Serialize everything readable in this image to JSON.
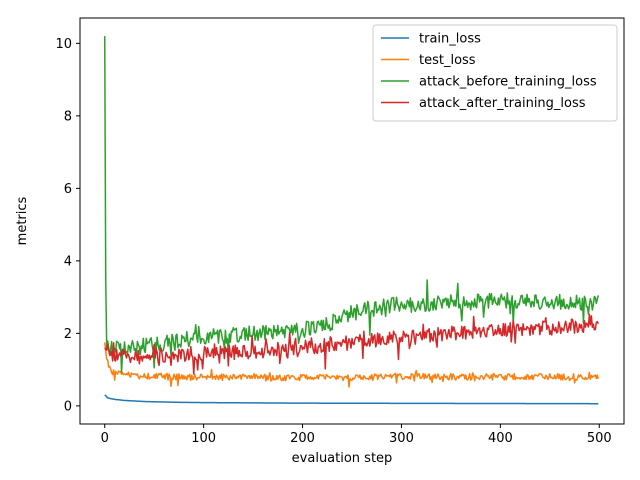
{
  "chart_data": {
    "type": "line",
    "title": "",
    "xlabel": "evaluation step",
    "ylabel": "metrics",
    "xlim": [
      -25,
      525
    ],
    "ylim": [
      -0.5,
      10.7
    ],
    "xticks": [
      0,
      100,
      200,
      300,
      400,
      500
    ],
    "yticks": [
      0,
      2,
      4,
      6,
      8,
      10
    ],
    "grid": false,
    "legend_position": "top-right",
    "x_range": [
      0,
      499
    ],
    "series": [
      {
        "name": "train_loss",
        "color": "#1f77b4",
        "noise": 0.0,
        "anchors": [
          [
            0,
            0.3
          ],
          [
            1,
            0.28
          ],
          [
            3,
            0.22
          ],
          [
            6,
            0.2
          ],
          [
            10,
            0.18
          ],
          [
            20,
            0.15
          ],
          [
            40,
            0.12
          ],
          [
            70,
            0.1
          ],
          [
            100,
            0.09
          ],
          [
            200,
            0.075
          ],
          [
            300,
            0.07
          ],
          [
            400,
            0.065
          ],
          [
            499,
            0.06
          ]
        ]
      },
      {
        "name": "test_loss",
        "color": "#ff7f0e",
        "noise": 0.09,
        "anchors": [
          [
            0,
            1.75
          ],
          [
            1,
            1.5
          ],
          [
            2,
            1.3
          ],
          [
            4,
            1.1
          ],
          [
            8,
            0.95
          ],
          [
            15,
            0.88
          ],
          [
            30,
            0.82
          ],
          [
            60,
            0.8
          ],
          [
            100,
            0.79
          ],
          [
            150,
            0.78
          ],
          [
            200,
            0.77
          ],
          [
            260,
            0.78
          ],
          [
            300,
            0.82
          ],
          [
            360,
            0.8
          ],
          [
            420,
            0.8
          ],
          [
            499,
            0.8
          ]
        ]
      },
      {
        "name": "attack_before_training_loss",
        "color": "#2ca02c",
        "noise": 0.22,
        "anchors": [
          [
            0,
            10.2
          ],
          [
            1,
            3.5
          ],
          [
            2,
            1.6
          ],
          [
            10,
            1.6
          ],
          [
            20,
            1.55
          ],
          [
            50,
            1.7
          ],
          [
            100,
            1.9
          ],
          [
            150,
            2.0
          ],
          [
            200,
            2.1
          ],
          [
            230,
            2.3
          ],
          [
            260,
            2.65
          ],
          [
            300,
            2.8
          ],
          [
            350,
            2.85
          ],
          [
            400,
            2.9
          ],
          [
            450,
            2.85
          ],
          [
            499,
            2.85
          ]
        ]
      },
      {
        "name": "attack_after_training_loss",
        "color": "#d62728",
        "noise": 0.2,
        "anchors": [
          [
            0,
            1.6
          ],
          [
            3,
            1.5
          ],
          [
            10,
            1.4
          ],
          [
            30,
            1.35
          ],
          [
            60,
            1.4
          ],
          [
            100,
            1.45
          ],
          [
            150,
            1.5
          ],
          [
            200,
            1.6
          ],
          [
            250,
            1.75
          ],
          [
            300,
            1.9
          ],
          [
            350,
            2.0
          ],
          [
            400,
            2.1
          ],
          [
            450,
            2.15
          ],
          [
            499,
            2.25
          ]
        ]
      }
    ]
  }
}
